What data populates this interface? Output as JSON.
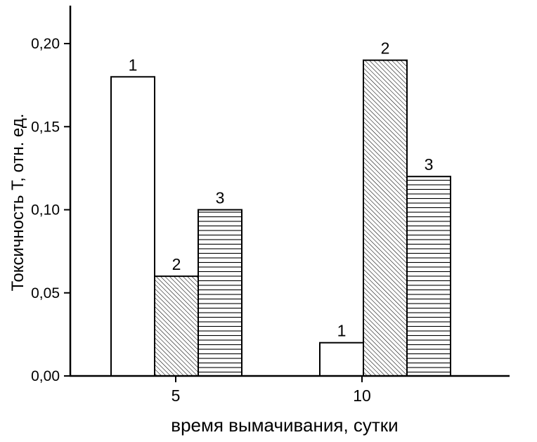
{
  "chart_data": {
    "type": "bar",
    "title": "",
    "xlabel": "время вымачивания, сутки",
    "ylabel": "Токсичность Т, отн. ед.",
    "categories": [
      "5",
      "10"
    ],
    "series": [
      {
        "name": "1",
        "hatch": "none",
        "values": [
          0.18,
          0.02
        ]
      },
      {
        "name": "2",
        "hatch": "diagonal",
        "values": [
          0.06,
          0.19
        ]
      },
      {
        "name": "3",
        "hatch": "horizontal",
        "values": [
          0.1,
          0.12
        ]
      }
    ],
    "ylim": [
      0,
      0.222
    ],
    "yticks": [
      0,
      0.05,
      0.1,
      0.15,
      0.2
    ],
    "ytick_labels": [
      "0,00",
      "0,05",
      "0,10",
      "0,15",
      "0,20"
    ],
    "grid": false,
    "legend": "none",
    "bar_value_labels": "series-number-above-bar",
    "colors": {
      "background": "#ffffff",
      "axis": "#000000",
      "bar_fill": "#ffffff",
      "bar_stroke": "#000000"
    }
  }
}
